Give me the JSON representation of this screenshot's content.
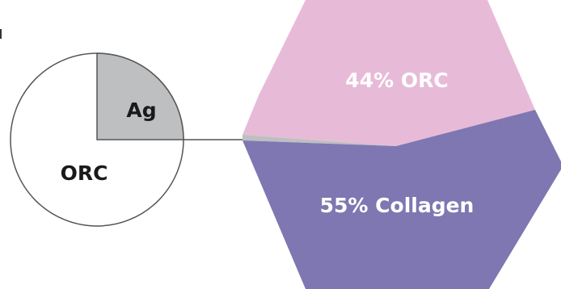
{
  "circle": {
    "labels": {
      "ag": "Ag",
      "orc": "ORC"
    },
    "ag_fraction": 0.25
  },
  "hexagon": {
    "top_label": "44% ORC",
    "bottom_label": "55% Collagen"
  },
  "chart_data": {
    "type": "pie",
    "segments": [
      {
        "name": "ORC",
        "value": 44
      },
      {
        "name": "Collagen",
        "value": 55
      },
      {
        "name": "Ag",
        "value": 1
      }
    ]
  },
  "colors": {
    "orc_segment": "#e7bbd8",
    "collagen_segment": "#7f77b2",
    "ag_segment": "#bdbfc1",
    "outline": "#555555",
    "connector": "#555555"
  }
}
